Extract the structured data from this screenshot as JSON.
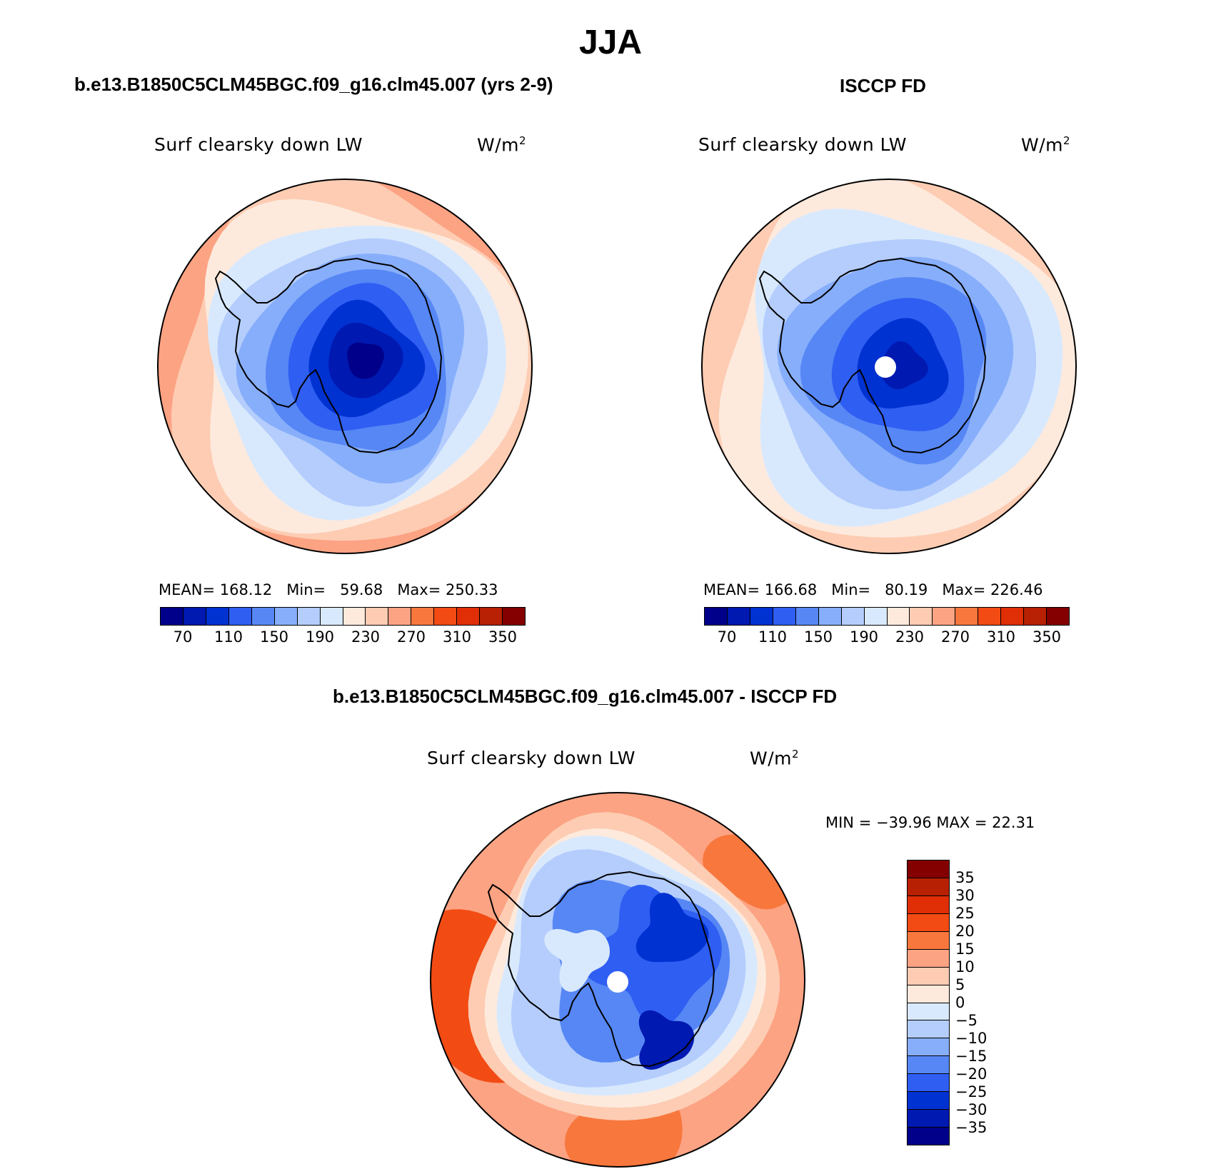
{
  "figure_title": "JJA",
  "panels": [
    {
      "id": "model",
      "case_title": "b.e13.B1850C5CLM45BGC.f09_g16.clm45.007 (yrs 2-9)",
      "variable": "Surf clearsky down LW",
      "units": "W/m",
      "units_sup": "2",
      "stats": {
        "mean_label": "MEAN=",
        "mean": "168.12",
        "min_label": "Min=",
        "min": "59.68",
        "max_label": "Max=",
        "max": "250.33"
      },
      "polar_hole": false
    },
    {
      "id": "obs",
      "case_title": "ISCCP FD",
      "variable": "Surf clearsky down LW",
      "units": "W/m",
      "units_sup": "2",
      "stats": {
        "mean_label": "MEAN=",
        "mean": "166.68",
        "min_label": "Min=",
        "min": "80.19",
        "max_label": "Max=",
        "max": "226.46"
      },
      "polar_hole": true
    },
    {
      "id": "diff",
      "case_title": "b.e13.B1850C5CLM45BGC.f09_g16.clm45.007 - ISCCP FD",
      "variable": "Surf clearsky down LW",
      "units": "W/m",
      "units_sup": "2",
      "stats": {
        "text": "MIN = −39.96 MAX =  22.31"
      },
      "polar_hole": true
    }
  ],
  "colorbar_abs": {
    "colors": [
      "#00008a",
      "#0019b0",
      "#0032d2",
      "#2f5ef2",
      "#5787f5",
      "#87aefa",
      "#b4cdfd",
      "#d9e9fd",
      "#fdeadd",
      "#fdccb3",
      "#fca383",
      "#f8773d",
      "#f24b14",
      "#e02e06",
      "#b82003",
      "#840000"
    ],
    "labels": [
      "70",
      "110",
      "150",
      "190",
      "230",
      "270",
      "310",
      "350"
    ]
  },
  "colorbar_diff": {
    "colors": [
      "#840000",
      "#b82003",
      "#e02e06",
      "#f24b14",
      "#f8773d",
      "#fca383",
      "#fdccb3",
      "#fdeadd",
      "#d9e9fd",
      "#b4cdfd",
      "#87aefa",
      "#5787f5",
      "#2f5ef2",
      "#0032d2",
      "#0019b0",
      "#00008a"
    ],
    "labels": [
      "35",
      "30",
      "25",
      "20",
      "15",
      "10",
      "5",
      "0",
      "−5",
      "−10",
      "−15",
      "−20",
      "−25",
      "−30",
      "−35"
    ]
  }
}
